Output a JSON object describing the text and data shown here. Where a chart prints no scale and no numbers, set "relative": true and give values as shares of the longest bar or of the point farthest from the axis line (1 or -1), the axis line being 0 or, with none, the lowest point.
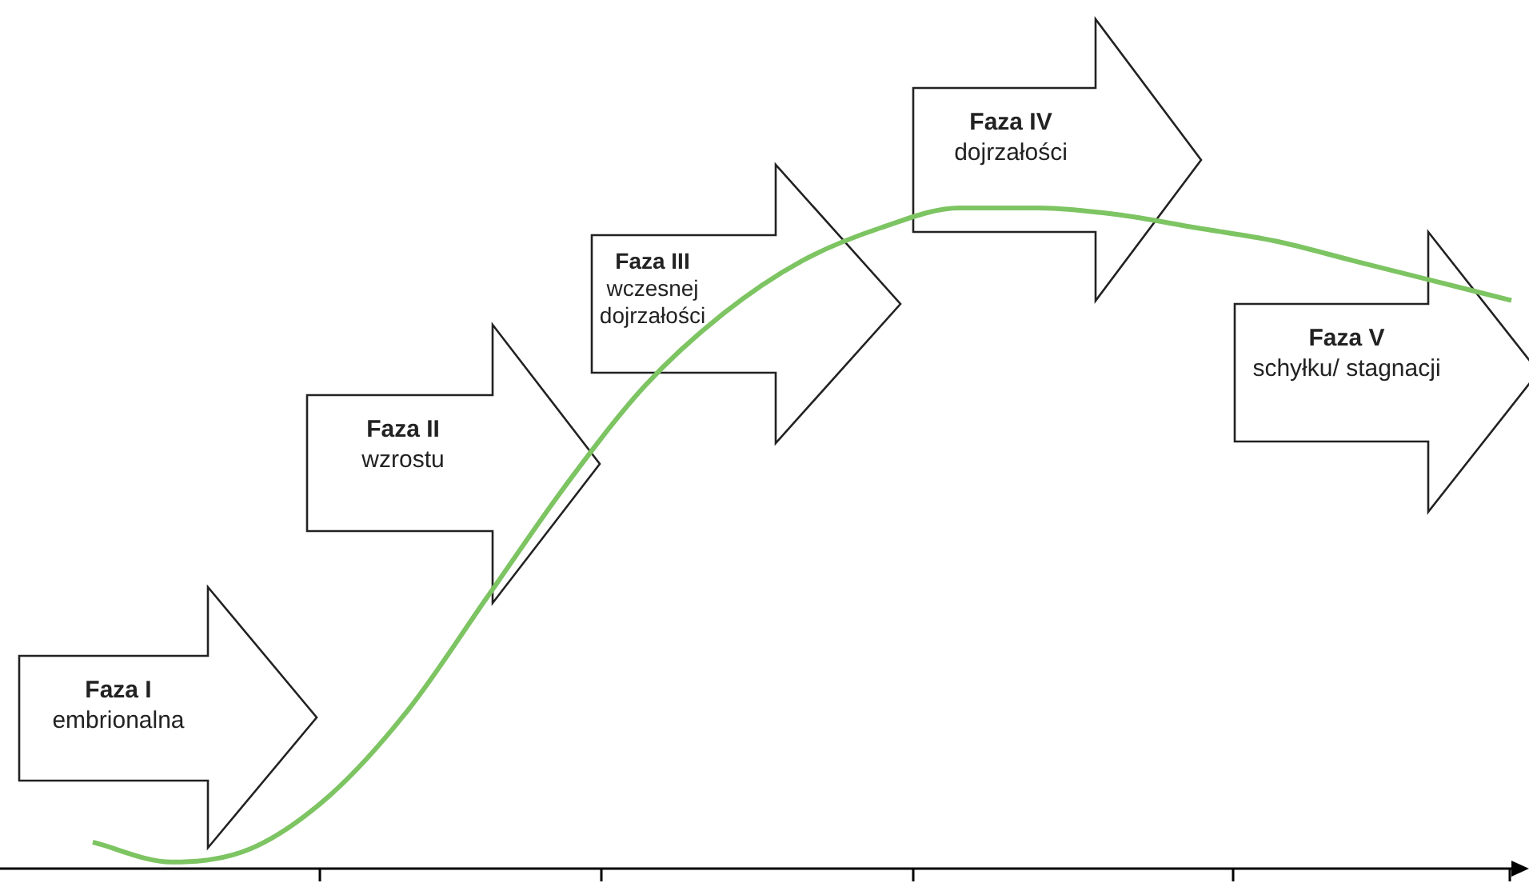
{
  "chart_data": {
    "type": "line",
    "relative": true,
    "categories": [
      null,
      null,
      null,
      null,
      null,
      null,
      null,
      null,
      null,
      null,
      null,
      null,
      null,
      null,
      null,
      null,
      null,
      null,
      null
    ],
    "series": [
      {
        "color": "#7dc462",
        "values": [
          0.04,
          0.01,
          0.03,
          0.11,
          0.24,
          0.41,
          0.58,
          0.73,
          0.84,
          0.92,
          0.97,
          1.0,
          1.0,
          0.99,
          0.97,
          0.95,
          0.92,
          0.89,
          0.86
        ]
      }
    ],
    "annotations": [
      "Faza I",
      "embrionalna",
      "Faza II",
      "wzrostu",
      "Faza III",
      "wczesnej dojrzałości",
      "Faza IV",
      "dojrzałości",
      "Faza V",
      "schyłku/ stagnacji"
    ]
  }
}
